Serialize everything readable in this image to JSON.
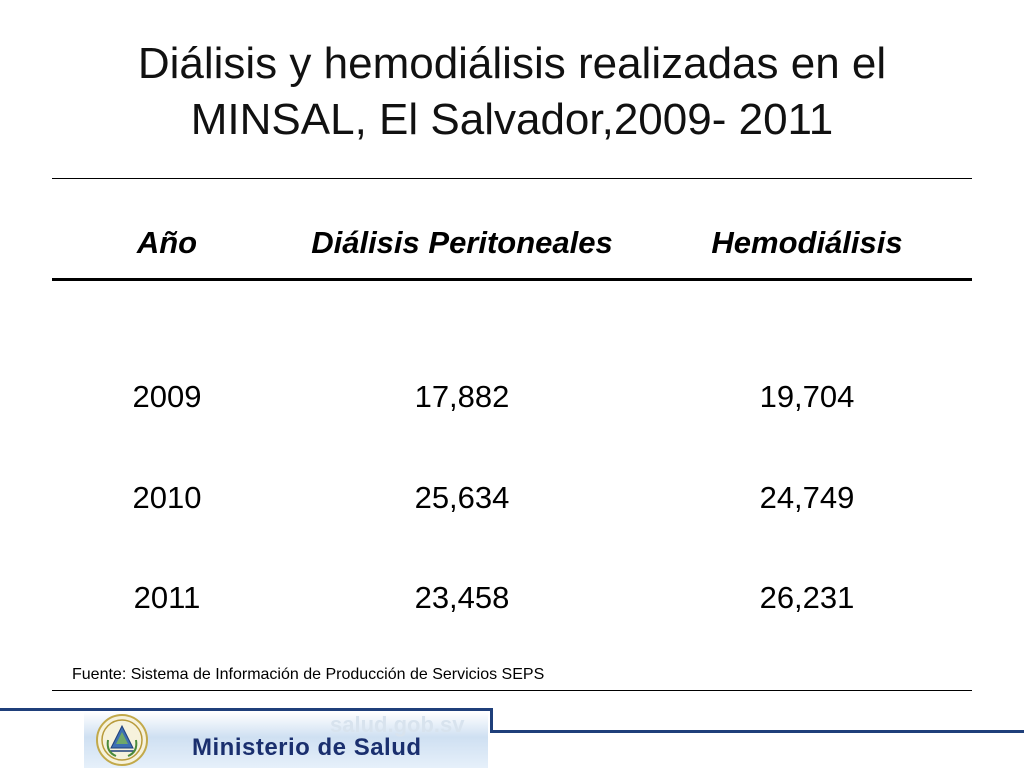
{
  "slide": {
    "title_line1": "Diálisis y hemodiálisis realizadas en el",
    "title_line2": "MINSAL, El Salvador,2009- 2011"
  },
  "table": {
    "headers": [
      "Año",
      "Diálisis Peritoneales",
      "Hemodiálisis"
    ],
    "rows": [
      [
        "2009",
        "17,882",
        "19,704"
      ],
      [
        "2010",
        "25,634",
        "24,749"
      ],
      [
        "2011",
        "23,458",
        "26,231"
      ]
    ]
  },
  "source": "Fuente: Sistema de Información de Producción de Servicios SEPS",
  "footer": {
    "ministry": "Ministerio de Salud",
    "domain": "salud.gob.sv",
    "seal_icon": "el-salvador-coat-of-arms-icon"
  },
  "colors": {
    "footer_line": "#1f3f7a",
    "ministry_text": "#1a2f6e"
  }
}
